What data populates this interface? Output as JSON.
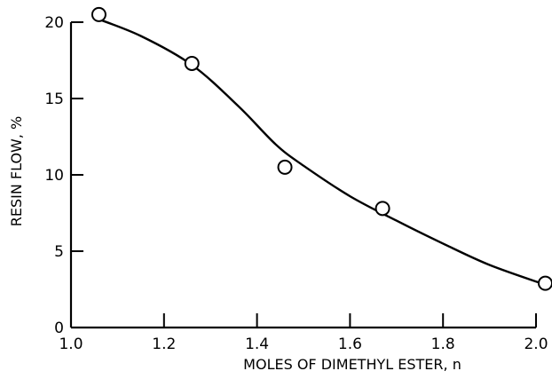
{
  "chart_data": {
    "type": "scatter",
    "title": "",
    "xlabel": "MOLES OF DIMETHYL ESTER, n",
    "ylabel": "RESIN FLOW, %",
    "xlim": [
      1.0,
      2.0
    ],
    "ylim": [
      0,
      20
    ],
    "xticks": [
      1.0,
      1.2,
      1.4,
      1.6,
      1.8,
      2.0
    ],
    "xtick_labels": [
      "1.0",
      "1.2",
      "1.4",
      "1.6",
      "1.8",
      "2.0"
    ],
    "yticks": [
      0,
      5,
      10,
      15,
      20
    ],
    "ytick_labels": [
      "0",
      "5",
      "10",
      "15",
      "20"
    ],
    "grid": false,
    "series": [
      {
        "marker": "open-circle",
        "points": [
          {
            "x": 1.06,
            "y": 20.5
          },
          {
            "x": 1.26,
            "y": 17.3
          },
          {
            "x": 1.46,
            "y": 10.5
          },
          {
            "x": 1.67,
            "y": 7.8
          },
          {
            "x": 2.02,
            "y": 2.9
          }
        ]
      }
    ],
    "fit_curve": [
      {
        "x": 1.05,
        "y": 20.3
      },
      {
        "x": 1.15,
        "y": 19.1
      },
      {
        "x": 1.26,
        "y": 17.2
      },
      {
        "x": 1.36,
        "y": 14.5
      },
      {
        "x": 1.44,
        "y": 12.0
      },
      {
        "x": 1.5,
        "y": 10.6
      },
      {
        "x": 1.6,
        "y": 8.6
      },
      {
        "x": 1.7,
        "y": 7.0
      },
      {
        "x": 1.8,
        "y": 5.5
      },
      {
        "x": 1.9,
        "y": 4.1
      },
      {
        "x": 2.02,
        "y": 2.8
      }
    ]
  }
}
